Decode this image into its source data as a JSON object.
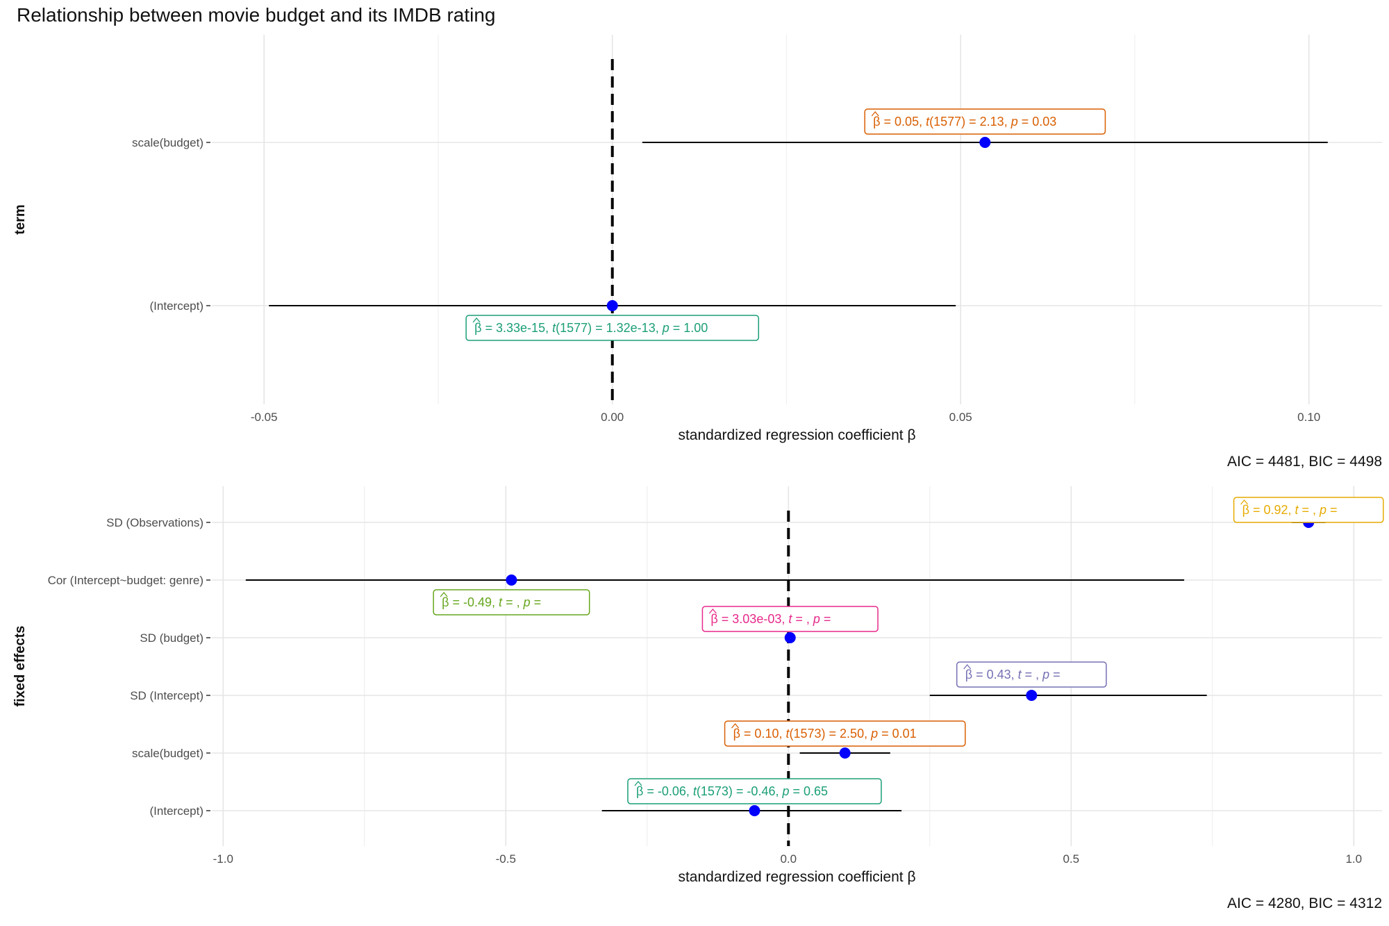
{
  "title": "Relationship between movie budget and its IMDB rating",
  "chart_data": [
    {
      "type": "scatter",
      "subtype": "coefficient-plot",
      "xlabel": "standardized regression coefficient β",
      "ylabel": "term",
      "xlim": [
        -0.0575,
        0.1105
      ],
      "x_ticks": [
        -0.05,
        0.0,
        0.05,
        0.1
      ],
      "x_tick_labels": [
        "-0.05",
        "0.00",
        "0.05",
        "0.10"
      ],
      "reference_line": 0,
      "grid": true,
      "footnote": "AIC = 4481, BIC = 4498",
      "terms": [
        {
          "term": "scale(budget)",
          "estimate": 0.0535,
          "conf_low": 0.0043,
          "conf_high": 0.1027,
          "color": "#D95F02",
          "label_parts": [
            "β",
            " = 0.05, ",
            "t",
            "(1577) = 2.13, ",
            "p",
            " = 0.03"
          ]
        },
        {
          "term": "(Intercept)",
          "estimate": 0.0,
          "conf_low": -0.0493,
          "conf_high": 0.0493,
          "color": "#1B9E77",
          "label_parts": [
            "β",
            " = 3.33e-15, ",
            "t",
            "(1577) = 1.32e-13, ",
            "p",
            " = 1.00"
          ]
        }
      ]
    },
    {
      "type": "scatter",
      "subtype": "coefficient-plot",
      "xlabel": "standardized regression coefficient β",
      "ylabel": "fixed effects",
      "xlim": [
        -1.02,
        1.05
      ],
      "x_ticks": [
        -1.0,
        -0.5,
        0.0,
        0.5,
        1.0
      ],
      "x_tick_labels": [
        "-1.0",
        "-0.5",
        "0.0",
        "0.5",
        "1.0"
      ],
      "reference_line": 0,
      "grid": true,
      "footnote": "AIC = 4280, BIC = 4312",
      "terms": [
        {
          "term": "SD (Observations)",
          "estimate": 0.92,
          "conf_low": 0.89,
          "conf_high": 0.95,
          "color": "#E6AB02",
          "label_parts": [
            "β",
            " = 0.92, ",
            "t",
            " = , ",
            "p",
            " = "
          ]
        },
        {
          "term": "Cor (Intercept~budget: genre)",
          "estimate": -0.49,
          "conf_low": -0.96,
          "conf_high": 0.7,
          "color": "#66A61E",
          "label_parts": [
            "β",
            " = -0.49, ",
            "t",
            " = , ",
            "p",
            " = "
          ]
        },
        {
          "term": "SD (budget)",
          "estimate": 0.003,
          "conf_low": null,
          "conf_high": null,
          "color": "#E7298A",
          "label_parts": [
            "β",
            " = 3.03e-03, ",
            "t",
            " = , ",
            "p",
            " = "
          ]
        },
        {
          "term": "SD (Intercept)",
          "estimate": 0.43,
          "conf_low": 0.25,
          "conf_high": 0.74,
          "color": "#7570B3",
          "label_parts": [
            "β",
            " = 0.43, ",
            "t",
            " = , ",
            "p",
            " = "
          ]
        },
        {
          "term": "scale(budget)",
          "estimate": 0.1,
          "conf_low": 0.02,
          "conf_high": 0.18,
          "color": "#D95F02",
          "label_parts": [
            "β",
            " = 0.10, ",
            "t",
            "(1573) = 2.50, ",
            "p",
            " = 0.01"
          ]
        },
        {
          "term": "(Intercept)",
          "estimate": -0.06,
          "conf_low": -0.33,
          "conf_high": 0.2,
          "color": "#1B9E77",
          "label_parts": [
            "β",
            " = -0.06, ",
            "t",
            "(1573) = -0.46, ",
            "p",
            " = 0.65"
          ]
        }
      ]
    }
  ]
}
